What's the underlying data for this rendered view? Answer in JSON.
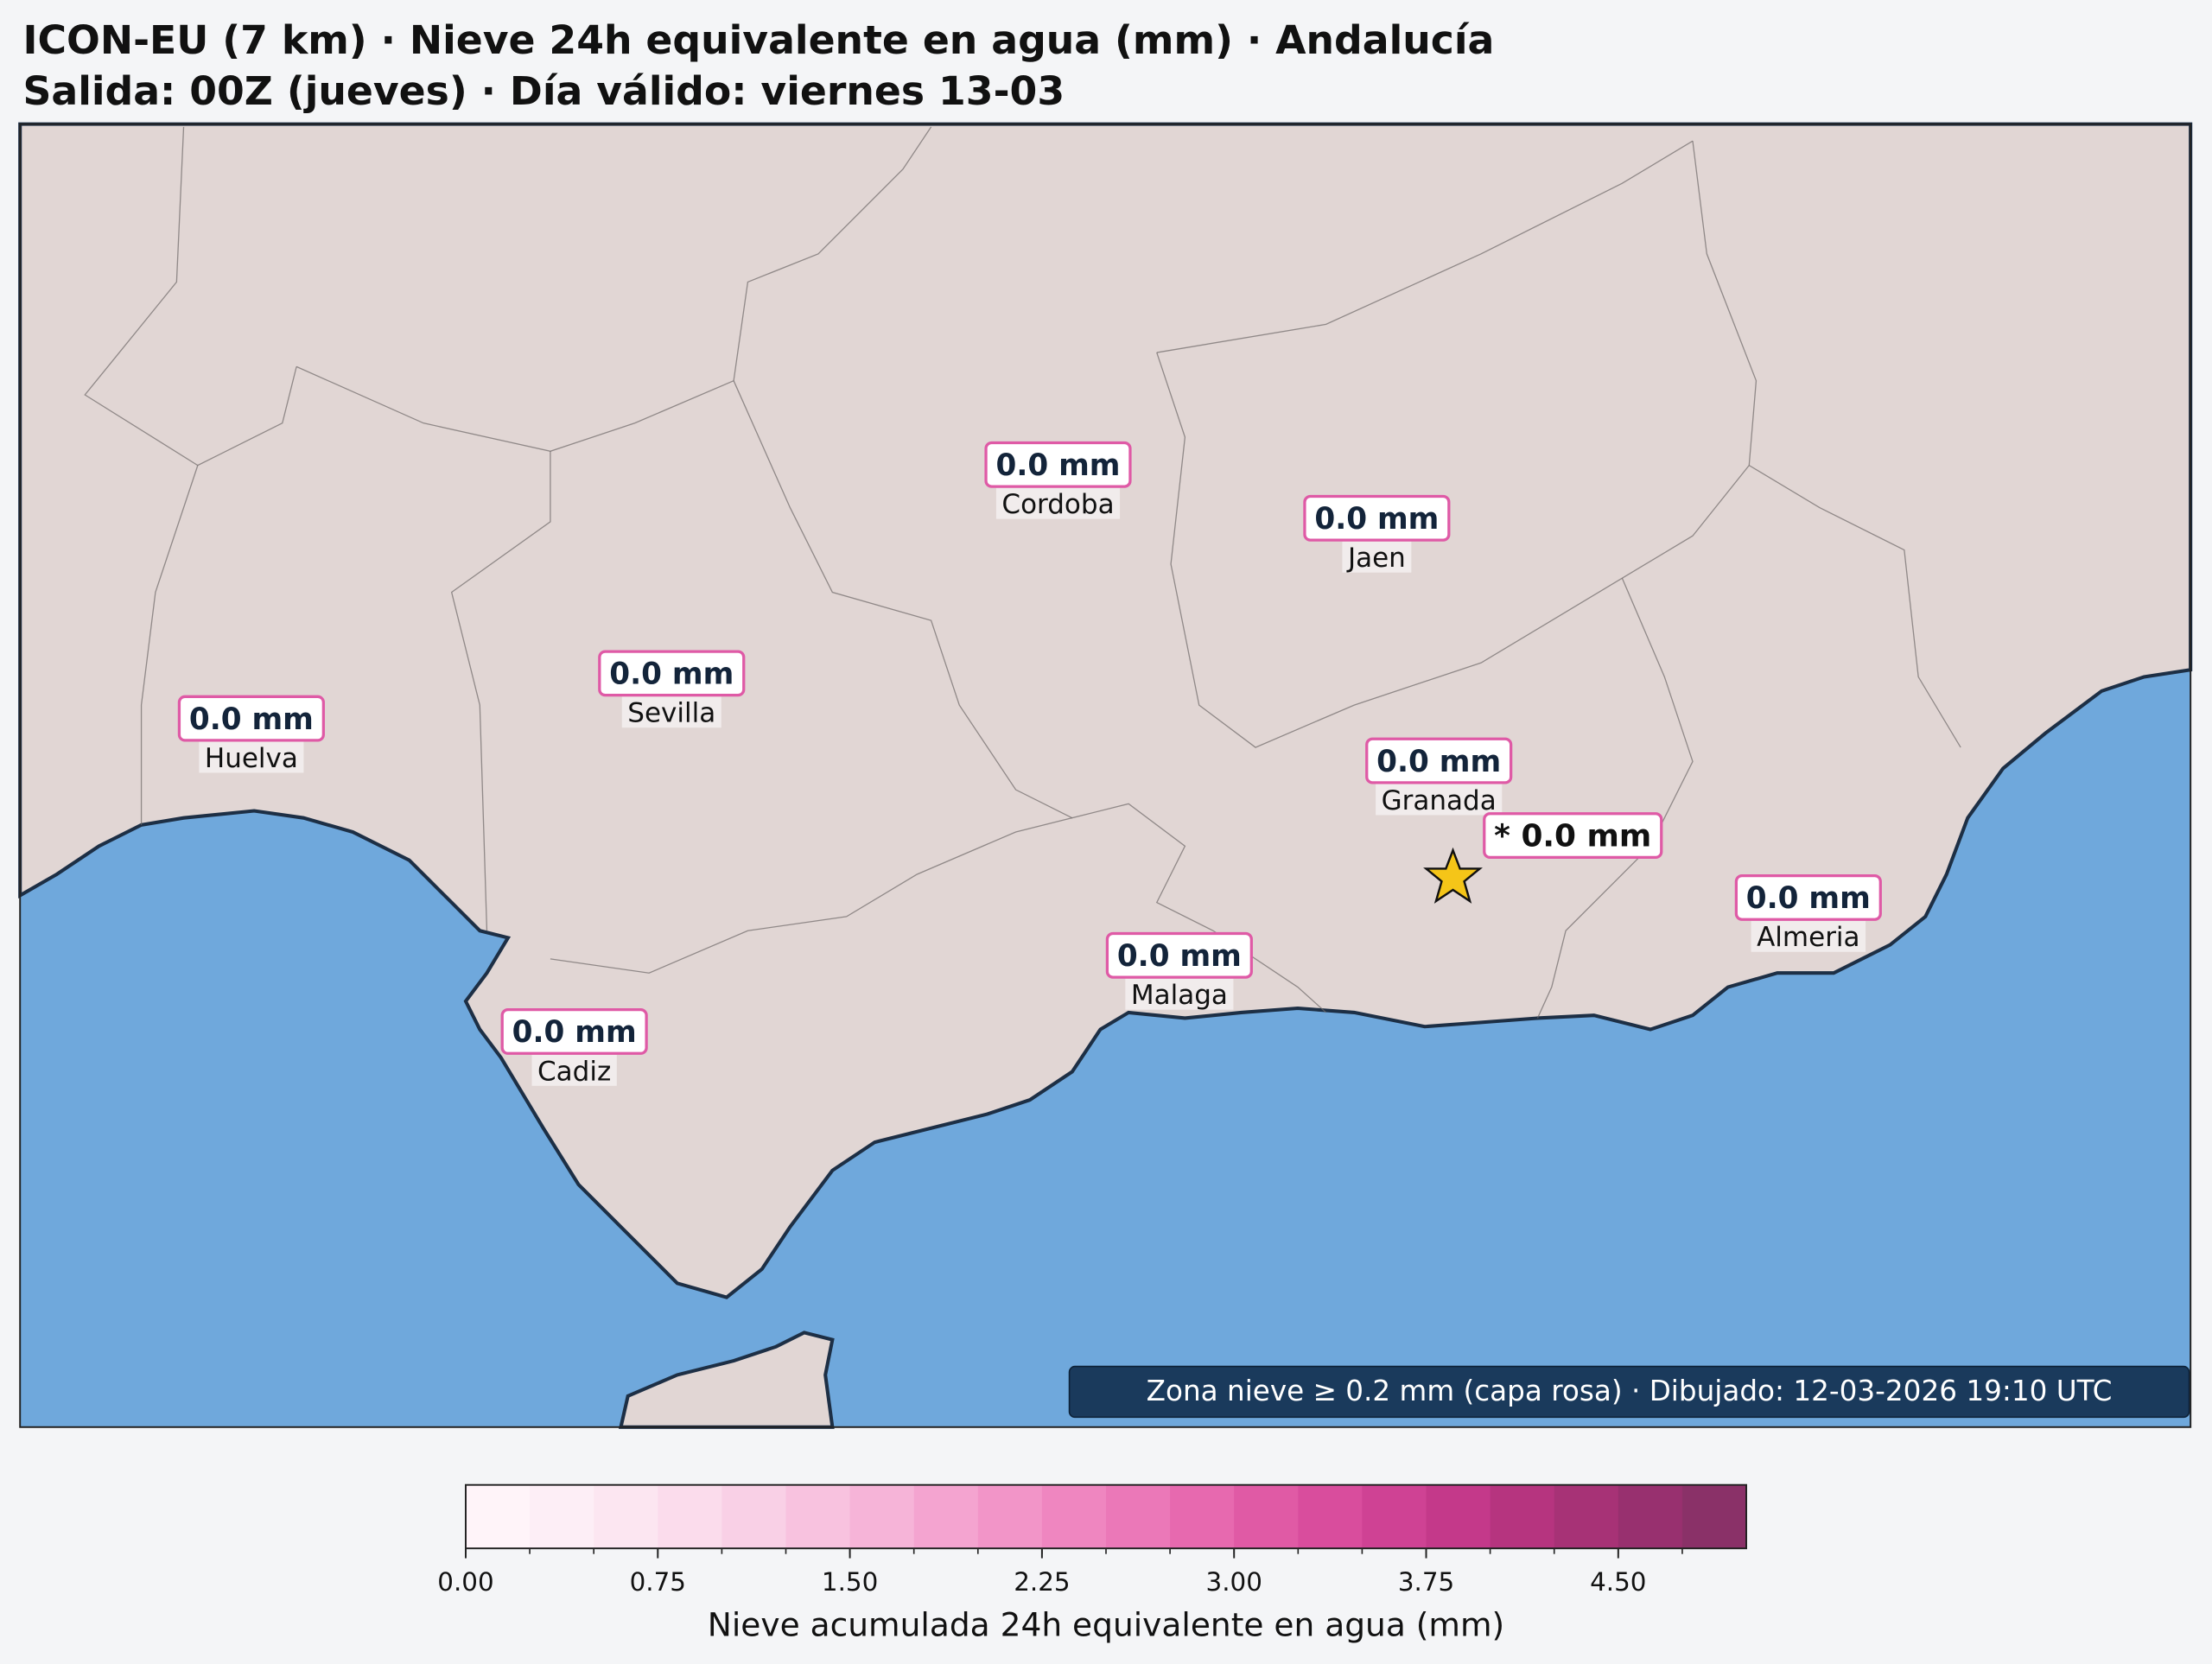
{
  "header": {
    "title": "ICON-EU (7 km) · Nieve 24h equivalente en agua (mm) · Andalucía",
    "subtitle": "Salida: 00Z (jueves) · Día válido: viernes 13-03"
  },
  "map": {
    "land_color": "#e1d6d4",
    "sea_color": "#6fa8dc",
    "cities": [
      {
        "name": "Cordoba",
        "label": "0.0 mm"
      },
      {
        "name": "Jaen",
        "label": "0.0 mm"
      },
      {
        "name": "Sevilla",
        "label": "0.0 mm"
      },
      {
        "name": "Huelva",
        "label": "0.0 mm"
      },
      {
        "name": "Granada",
        "label": "0.0 mm"
      },
      {
        "name": "Almeria",
        "label": "0.0 mm"
      },
      {
        "name": "Malaga",
        "label": "0.0 mm"
      },
      {
        "name": "Cadiz",
        "label": "0.0 mm"
      }
    ],
    "peak": {
      "label": "* 0.0 mm"
    },
    "footer": "Zona nieve ≥ 0.2 mm (capa rosa) · Dibujado: 12-03-2026 19:10 UTC"
  },
  "colorbar": {
    "label": "Nieve acumulada 24h equivalente en agua (mm)",
    "lim": [
      0,
      5
    ],
    "ticks": [
      {
        "value": 0,
        "label": "0.00"
      },
      {
        "value": 0.75,
        "label": "0.75"
      },
      {
        "value": 1.5,
        "label": "1.50"
      },
      {
        "value": 2.25,
        "label": "2.25"
      },
      {
        "value": 3,
        "label": "3.00"
      },
      {
        "value": 3.75,
        "label": "3.75"
      },
      {
        "value": 4.5,
        "label": "4.50"
      }
    ],
    "colors": [
      "#fff4f9",
      "#fdeef6",
      "#fce6f1",
      "#fbdcec",
      "#f9d0e6",
      "#f8c2df",
      "#f6b4d8",
      "#f4a4d0",
      "#f295c8",
      "#ef86c0",
      "#eb78b8",
      "#e769af",
      "#e05aa5",
      "#d94d9d",
      "#cf4294",
      "#c4398a",
      "#b6347f",
      "#a73276",
      "#98306f",
      "#8a3168"
    ]
  }
}
